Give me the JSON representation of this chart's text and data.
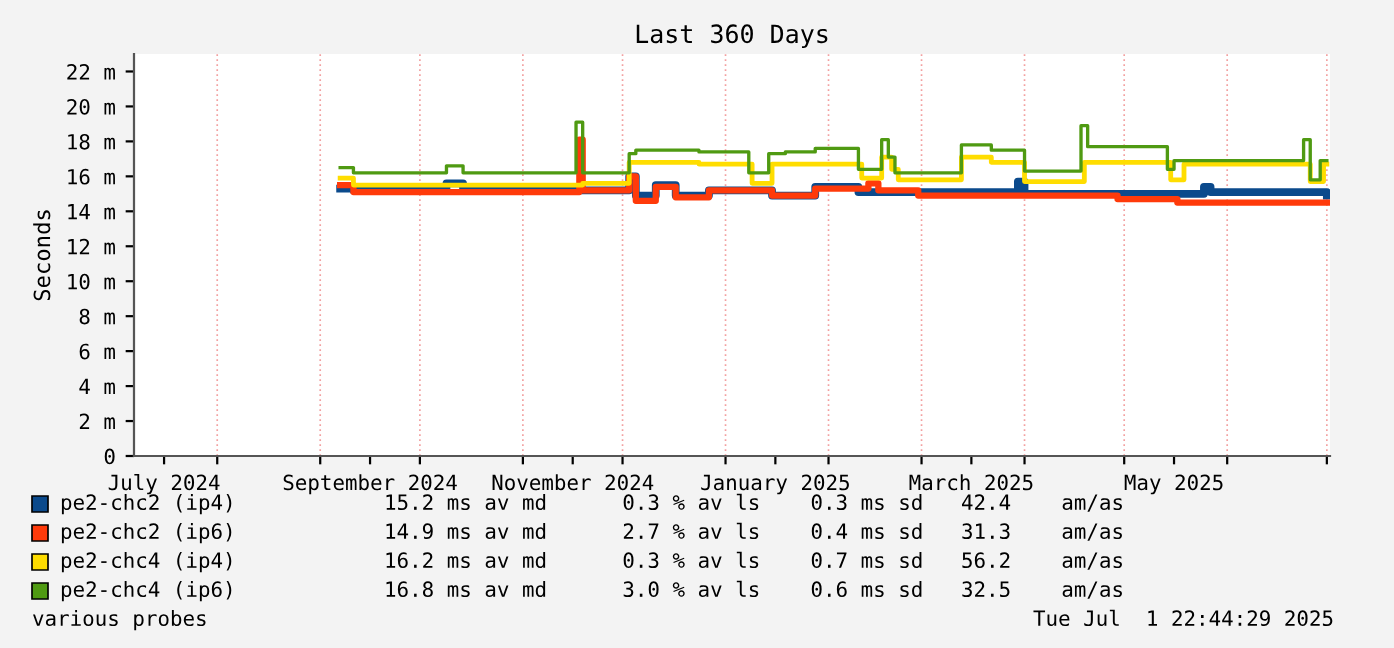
{
  "chart_data": {
    "type": "step",
    "title": "Last 360 Days",
    "ylabel": "Seconds",
    "xlim": [
      "2024-07-06T22:44",
      "2025-07-01T22:44"
    ],
    "xticks": [
      {
        "value": "2024-07-16",
        "label": "July 2024"
      },
      {
        "value": "2024-08-01",
        "label": null
      },
      {
        "value": "2024-09-01",
        "label": null
      },
      {
        "value": "2024-09-16",
        "label": "September 2024"
      },
      {
        "value": "2024-10-01",
        "label": null
      },
      {
        "value": "2024-11-01",
        "label": null
      },
      {
        "value": "2024-11-16",
        "label": "November 2024"
      },
      {
        "value": "2024-12-01",
        "label": null
      },
      {
        "value": "2025-01-01",
        "label": null
      },
      {
        "value": "2025-01-16",
        "label": "January 2025"
      },
      {
        "value": "2025-02-01",
        "label": null
      },
      {
        "value": "2025-03-01",
        "label": null
      },
      {
        "value": "2025-03-16",
        "label": "March 2025"
      },
      {
        "value": "2025-04-01",
        "label": null
      },
      {
        "value": "2025-05-01",
        "label": null
      },
      {
        "value": "2025-05-16",
        "label": "May 2025"
      },
      {
        "value": "2025-06-01",
        "label": null
      },
      {
        "value": "2025-07-01",
        "label": null
      }
    ],
    "ylim": [
      0,
      23
    ],
    "yticks": [
      0,
      {
        "value": 2,
        "label": "2 m"
      },
      {
        "value": 4,
        "label": "4 m"
      },
      {
        "value": 6,
        "label": "6 m"
      },
      {
        "value": 8,
        "label": "8 m"
      },
      {
        "value": 10,
        "label": "10 m"
      },
      {
        "value": 12,
        "label": "12 m"
      },
      {
        "value": 14,
        "label": "14 m"
      },
      {
        "value": 16,
        "label": "16 m"
      },
      {
        "value": 18,
        "label": "18 m"
      },
      {
        "value": 20,
        "label": "20 m"
      },
      {
        "value": 22,
        "label": "22 m"
      }
    ],
    "grid": true,
    "legend": "bottom",
    "series": [
      {
        "name": "pe2-chc2 (ip4)",
        "color": "#0b4a8c",
        "x": [
          "2024-09-07",
          "2024-09-11",
          "2024-10-09",
          "2024-10-14",
          "2024-12-03",
          "2024-12-05",
          "2024-12-11",
          "2024-12-17",
          "2024-12-27",
          "2025-01-15",
          "2025-01-28",
          "2025-02-10",
          "2025-03-30",
          "2025-04-01",
          "2025-05-25",
          "2025-05-27",
          "2025-07-01"
        ],
        "values": [
          15.3,
          15.2,
          15.6,
          15.2,
          16.0,
          14.9,
          15.5,
          14.9,
          15.2,
          14.9,
          15.4,
          15.1,
          15.7,
          15.0,
          15.4,
          15.1,
          14.9
        ]
      },
      {
        "name": "pe2-chc2 (ip6)",
        "color": "#ff3a0a",
        "x": [
          "2024-09-07",
          "2024-09-11",
          "2024-11-18",
          "2024-11-19",
          "2024-12-03",
          "2024-12-05",
          "2024-12-11",
          "2024-12-17",
          "2024-12-27",
          "2025-01-15",
          "2025-01-28",
          "2025-02-13",
          "2025-02-16",
          "2025-02-28",
          "2025-04-29",
          "2025-05-17",
          "2025-07-01"
        ],
        "values": [
          15.5,
          15.1,
          18.1,
          15.2,
          16.0,
          14.6,
          15.4,
          14.8,
          15.2,
          14.9,
          15.3,
          15.6,
          15.2,
          14.9,
          14.7,
          14.5,
          14.5
        ]
      },
      {
        "name": "pe2-chc4 (ip4)",
        "color": "#ffdd00",
        "x": [
          "2024-09-07",
          "2024-09-11",
          "2024-11-19",
          "2024-12-03",
          "2024-12-24",
          "2025-01-09",
          "2025-01-15",
          "2025-02-11",
          "2025-02-17",
          "2025-02-20",
          "2025-02-22",
          "2025-03-13",
          "2025-03-22",
          "2025-04-01",
          "2025-04-19",
          "2025-05-15",
          "2025-05-19",
          "2025-06-26",
          "2025-06-30",
          "2025-07-01"
        ],
        "values": [
          15.9,
          15.5,
          15.6,
          16.8,
          16.7,
          15.6,
          16.7,
          15.9,
          17.1,
          16.4,
          15.8,
          17.1,
          16.8,
          15.7,
          16.8,
          15.8,
          16.7,
          15.7,
          16.7,
          16.7
        ]
      },
      {
        "name": "pe2-chc4 (ip6)",
        "color": "#4f9a12",
        "x": [
          "2024-09-07",
          "2024-09-11",
          "2024-10-09",
          "2024-10-14",
          "2024-11-17",
          "2024-11-19",
          "2024-12-03",
          "2024-12-05",
          "2024-12-24",
          "2025-01-08",
          "2025-01-14",
          "2025-01-19",
          "2025-01-28",
          "2025-02-10",
          "2025-02-17",
          "2025-02-19",
          "2025-02-21",
          "2025-03-13",
          "2025-03-22",
          "2025-04-01",
          "2025-04-18",
          "2025-04-20",
          "2025-05-14",
          "2025-05-16",
          "2025-06-24",
          "2025-06-26",
          "2025-06-29",
          "2025-07-01"
        ],
        "values": [
          16.5,
          16.2,
          16.6,
          16.2,
          19.1,
          16.2,
          17.3,
          17.5,
          17.4,
          16.2,
          17.3,
          17.4,
          17.6,
          16.4,
          18.1,
          17.1,
          16.2,
          17.8,
          17.5,
          16.3,
          18.9,
          17.7,
          16.4,
          16.9,
          18.1,
          15.8,
          16.9,
          16.9
        ]
      }
    ],
    "annotations": [
      "15.2 ms av md      0.3 % av ls    0.3 ms sd   42.4    am/as",
      "14.9 ms av md      2.7 % av ls    0.4 ms sd   31.3    am/as",
      "16.2 ms av md      0.3 % av ls    0.7 ms sd   56.2    am/as",
      "16.8 ms av md      3.0 % av ls    0.6 ms sd   32.5    am/as",
      "various probes",
      "Tue Jul  1 22:44:29 2025"
    ]
  }
}
